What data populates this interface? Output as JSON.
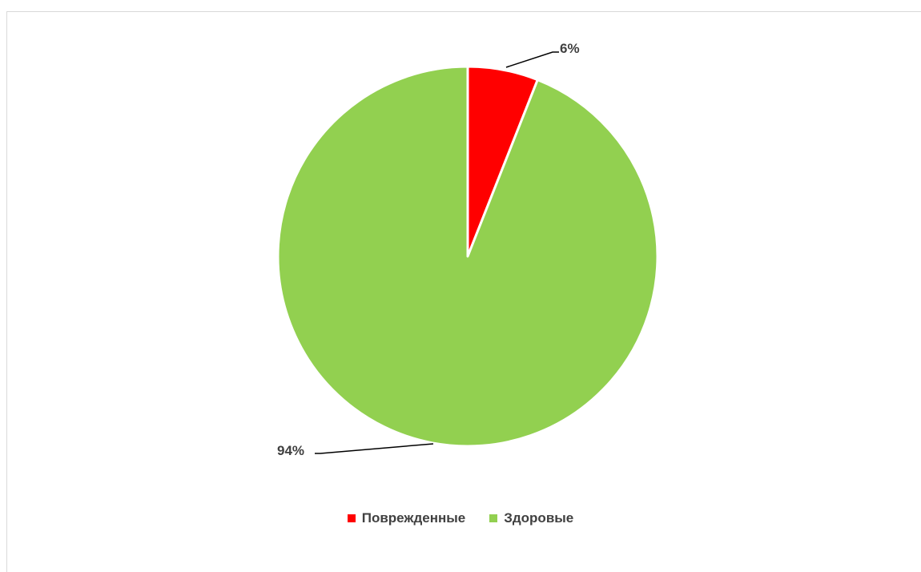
{
  "chart_data": {
    "type": "pie",
    "title": "",
    "categories": [
      "Поврежденные",
      "Здоровые"
    ],
    "values": [
      6,
      94
    ],
    "data_labels": [
      "6%",
      "94%"
    ],
    "colors": [
      "#ff0000",
      "#92d050"
    ],
    "start_angle_deg": 0,
    "direction": "clockwise",
    "legend": {
      "position": "bottom",
      "entries": [
        "Поврежденные",
        "Здоровые"
      ]
    }
  }
}
